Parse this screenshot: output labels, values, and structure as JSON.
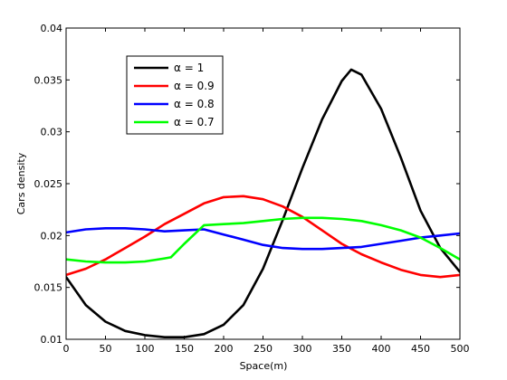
{
  "chart_data": {
    "type": "line",
    "title": "",
    "xlabel": "Space(m)",
    "ylabel": "Cars density",
    "xlim": [
      0,
      500
    ],
    "ylim": [
      0.01,
      0.04
    ],
    "xticks": [
      0,
      50,
      100,
      150,
      200,
      250,
      300,
      350,
      400,
      450,
      500
    ],
    "yticks": [
      0.01,
      0.015,
      0.02,
      0.025,
      0.03,
      0.035,
      0.04
    ],
    "xtick_labels": [
      "0",
      "50",
      "100",
      "150",
      "200",
      "250",
      "300",
      "350",
      "400",
      "450",
      "500"
    ],
    "ytick_labels": [
      "0.01",
      "0.015",
      "0.02",
      "0.025",
      "0.03",
      "0.035",
      "0.04"
    ],
    "grid": false,
    "legend_position": "upper-left",
    "series": [
      {
        "name": "α = 1",
        "color": "#000000",
        "x": [
          0,
          25,
          50,
          75,
          100,
          125,
          150,
          175,
          200,
          225,
          250,
          275,
          300,
          325,
          350,
          362,
          375,
          400,
          425,
          450,
          475,
          500
        ],
        "y": [
          0.016,
          0.0133,
          0.0117,
          0.0108,
          0.0104,
          0.0102,
          0.0102,
          0.0105,
          0.0114,
          0.0133,
          0.0168,
          0.0215,
          0.0265,
          0.0312,
          0.0349,
          0.036,
          0.0355,
          0.0322,
          0.0275,
          0.0224,
          0.0188,
          0.0165
        ]
      },
      {
        "name": "α = 0.9",
        "color": "#ff0000",
        "x": [
          0,
          25,
          50,
          75,
          100,
          125,
          150,
          175,
          200,
          225,
          250,
          275,
          300,
          325,
          350,
          375,
          400,
          425,
          450,
          475,
          500
        ],
        "y": [
          0.0162,
          0.0168,
          0.0177,
          0.0188,
          0.0199,
          0.0211,
          0.0221,
          0.0231,
          0.0237,
          0.0238,
          0.0235,
          0.0228,
          0.0218,
          0.0205,
          0.0192,
          0.0182,
          0.0174,
          0.0167,
          0.0162,
          0.016,
          0.0162
        ]
      },
      {
        "name": "α = 0.8",
        "color": "#0000ff",
        "x": [
          0,
          25,
          50,
          75,
          100,
          125,
          150,
          175,
          200,
          225,
          250,
          275,
          300,
          325,
          350,
          375,
          400,
          425,
          450,
          475,
          500
        ],
        "y": [
          0.0203,
          0.0206,
          0.0207,
          0.0207,
          0.0206,
          0.0204,
          0.0205,
          0.0206,
          0.0201,
          0.0196,
          0.0191,
          0.0188,
          0.0187,
          0.0187,
          0.0188,
          0.0189,
          0.0192,
          0.0195,
          0.0198,
          0.02,
          0.0202
        ]
      },
      {
        "name": "α = 0.7",
        "color": "#00ff00",
        "x": [
          0,
          25,
          50,
          75,
          100,
          125,
          133,
          150,
          175,
          200,
          225,
          250,
          275,
          300,
          325,
          350,
          375,
          400,
          425,
          450,
          475,
          500
        ],
        "y": [
          0.0177,
          0.0175,
          0.0174,
          0.0174,
          0.0175,
          0.0178,
          0.0179,
          0.0192,
          0.021,
          0.0211,
          0.0212,
          0.0214,
          0.0216,
          0.0217,
          0.0217,
          0.0216,
          0.0214,
          0.021,
          0.0205,
          0.0198,
          0.0188,
          0.0177
        ]
      }
    ]
  }
}
